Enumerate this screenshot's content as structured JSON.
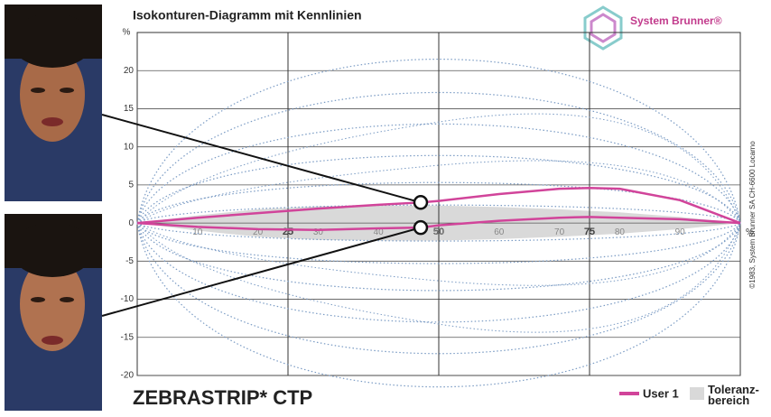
{
  "chart_data": {
    "type": "line",
    "title": "Isokonturen-Diagramm mit Kennlinien",
    "product": "ZEBRASTRIP* CTP",
    "logo": "System Brunner®",
    "copyright": "©1983, System Brunner SA CH-6600 Locarno",
    "y_unit": "%",
    "x_unit": "%",
    "xlim": [
      0,
      100
    ],
    "ylim": [
      -20,
      25
    ],
    "yticks": [
      -20,
      -15,
      -10,
      -5,
      0,
      5,
      10,
      15,
      20
    ],
    "xticks": [
      10,
      20,
      30,
      40,
      50,
      60,
      70,
      80,
      90
    ],
    "xticks_major": [
      25,
      50,
      75
    ],
    "grid": true,
    "x": [
      0,
      10,
      20,
      30,
      40,
      47,
      50,
      60,
      70,
      75,
      80,
      90,
      100
    ],
    "series": [
      {
        "name": "User 1",
        "color": "#d1449a",
        "curves": [
          [
            0,
            0.7,
            1.3,
            1.9,
            2.4,
            2.7,
            2.9,
            3.8,
            4.5,
            4.6,
            4.5,
            3,
            0
          ],
          [
            0,
            -0.5,
            -0.8,
            -0.9,
            -0.7,
            -0.6,
            -0.3,
            0.3,
            0.7,
            0.8,
            0.7,
            0.5,
            0
          ]
        ]
      }
    ],
    "marker_index": 5,
    "band": {
      "name": "Toleranz-bereich",
      "color": "#d9d9d9",
      "upper": [
        0,
        1,
        1.8,
        2.2,
        2.3,
        2.3,
        2.3,
        2.1,
        1.8,
        1.6,
        1.4,
        0.8,
        0
      ],
      "lower": [
        0,
        -1,
        -1.8,
        -2.2,
        -2.3,
        -2.3,
        -2.3,
        -2.1,
        -1.8,
        -1.6,
        -1.4,
        -0.8,
        0
      ]
    }
  }
}
